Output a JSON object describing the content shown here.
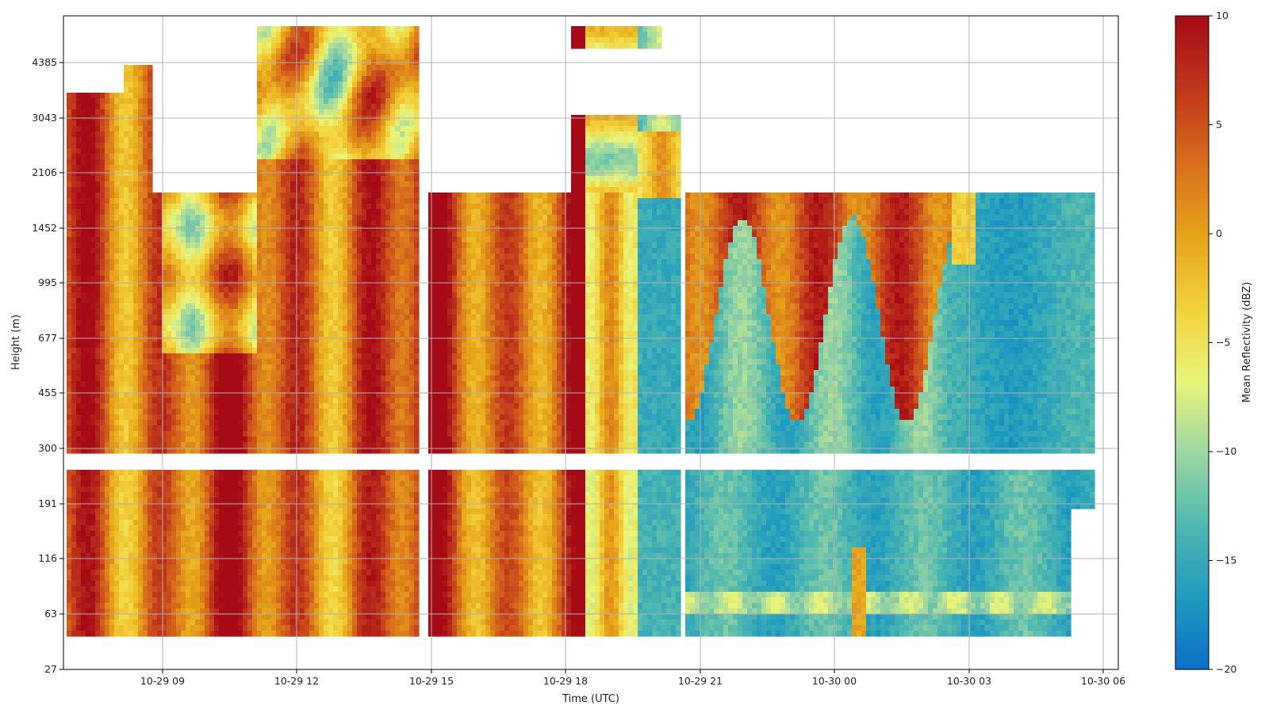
{
  "chart_data": {
    "type": "heatmap",
    "title": "",
    "xlabel": "Time (UTC)",
    "ylabel": "Height (m)",
    "x_ticks": [
      "10-29 09",
      "10-29 12",
      "10-29 15",
      "10-29 18",
      "10-29 21",
      "10-30 00",
      "10-30 03",
      "10-30 06"
    ],
    "y_ticks": [
      "27",
      "63",
      "116",
      "191",
      "300",
      "455",
      "677",
      "995",
      "1452",
      "2106",
      "3043",
      "4385"
    ],
    "grid": true,
    "colorbar": {
      "label": "Mean Reflectivity (dBZ)",
      "min": -20,
      "max": 10,
      "ticks": [
        "10",
        "5",
        "0",
        "−5",
        "−10",
        "−15",
        "−20"
      ],
      "colormap": [
        "#0a6fc7",
        "#1f9bbf",
        "#4fb8b0",
        "#9cd6a2",
        "#e8f57a",
        "#f3d23c",
        "#e6a51a",
        "#d8701c",
        "#c23a1c",
        "#a50a16"
      ]
    },
    "x_range_hours": [
      "10-29 06:50",
      "10-30 06:40"
    ],
    "segments": [
      {
        "time_range": [
          "10-29 06:50",
          "10-29 14:55"
        ],
        "lower_gate": "strong (0 to 10 dBZ)",
        "upper_gate": "strong (0 to 10 dBZ), top ~5000 m"
      },
      {
        "time_range": [
          "10-29 15:05",
          "10-29 19:40"
        ],
        "lower_gate": "strong (0 to 10 dBZ)",
        "upper_gate": "strong, top ~1850 m"
      },
      {
        "time_range": [
          "10-29 19:40",
          "10-29 20:50"
        ],
        "lower_gate": "weak (-15 dBZ)",
        "upper_gate": "weak (-15 dBZ)"
      },
      {
        "time_range": [
          "10-29 21:00",
          "10-30 06:30"
        ],
        "lower_gate": "weak (-15 to -10 dBZ)",
        "upper_gate": "mixed, strong aloft early then weak (-15 dBZ)"
      }
    ]
  }
}
